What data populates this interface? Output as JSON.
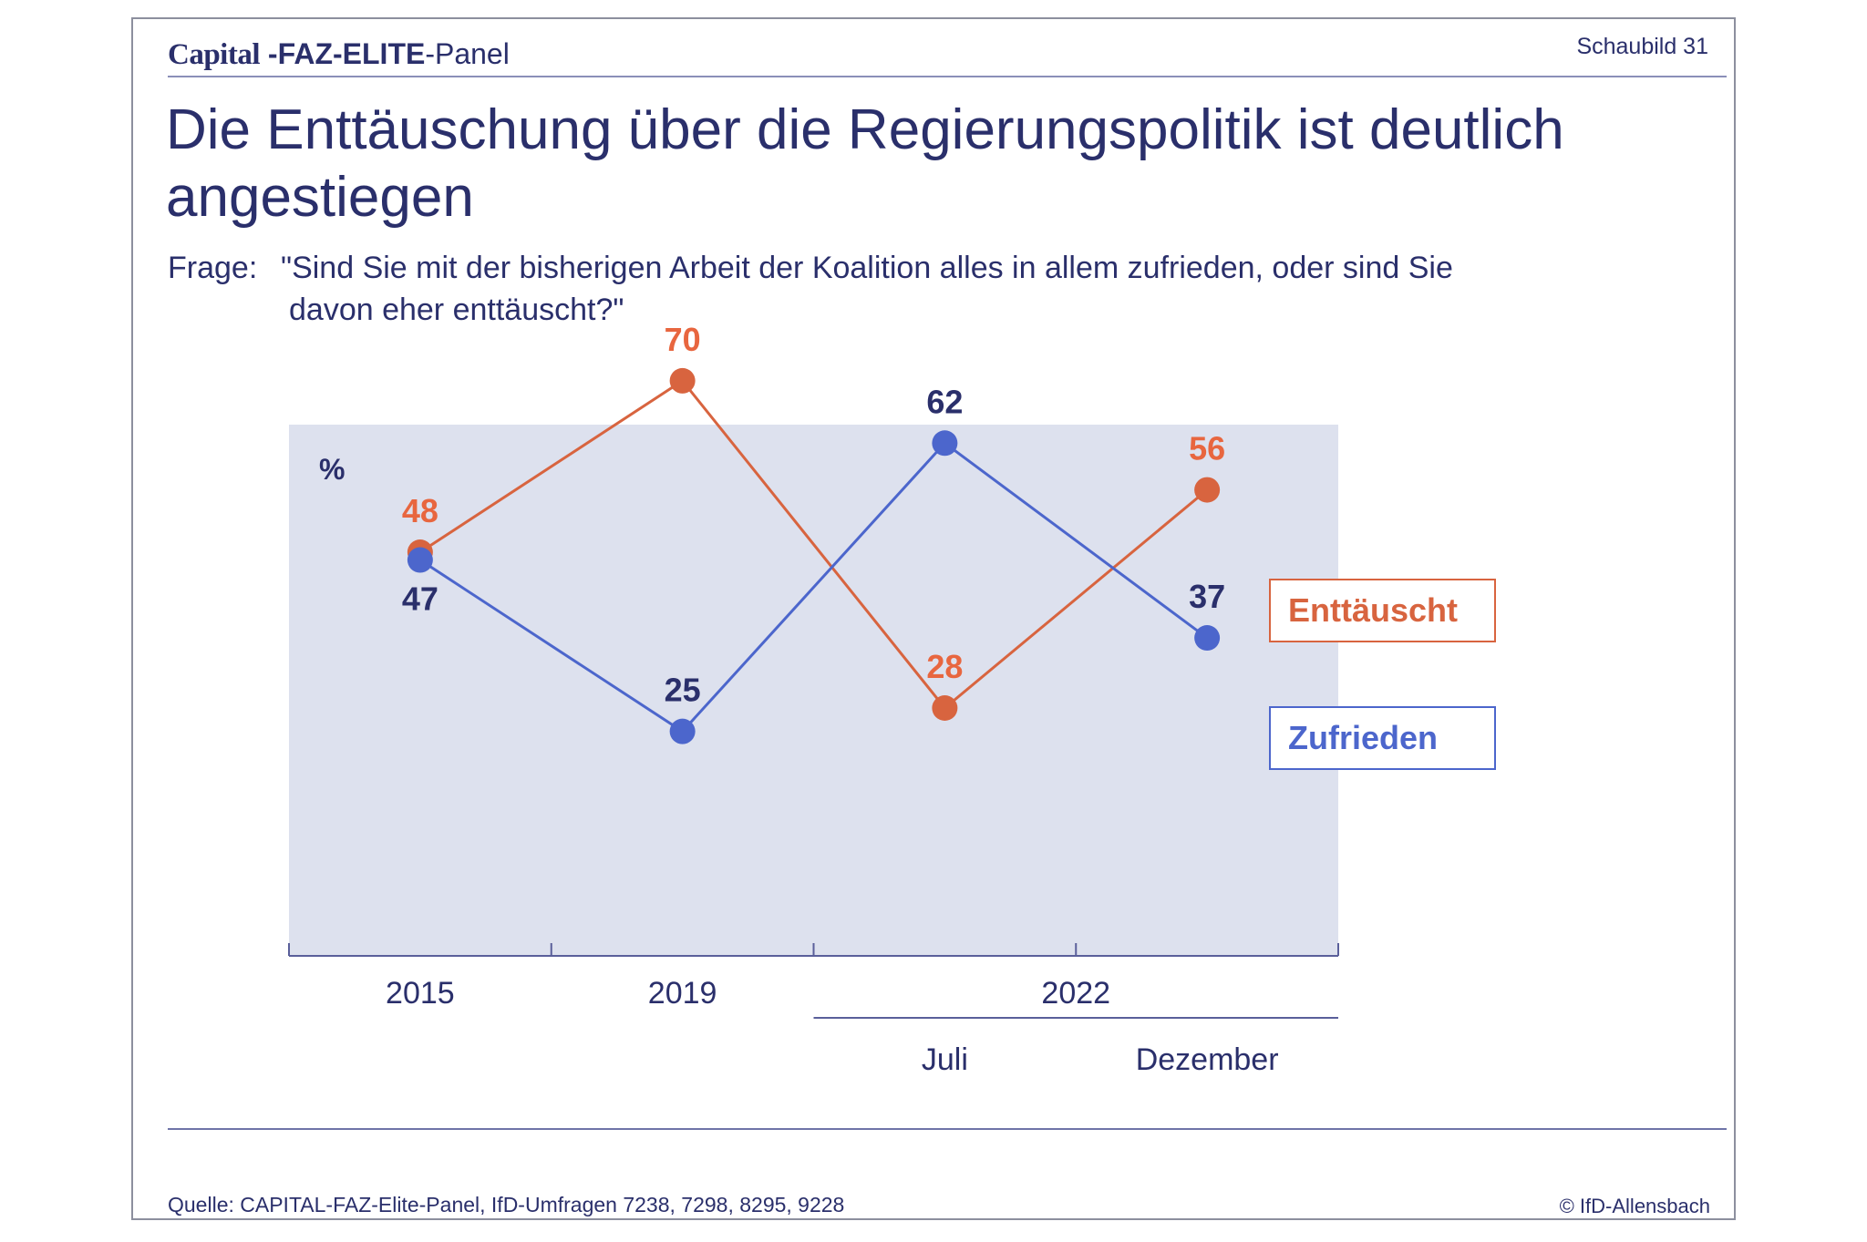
{
  "header": {
    "brand_capital": "Capital",
    "brand_faz_elite": " -FAZ-ELITE",
    "brand_panel": "-Panel",
    "figure_number": "Schaubild 31"
  },
  "title": "Die Enttäuschung über die Regierungspolitik ist deutlich angestiegen",
  "question": {
    "label": "Frage:",
    "text_line1": "\"Sind Sie mit der bisherigen Arbeit der Koalition alles in allem zufrieden, oder sind Sie",
    "text_line2": "davon eher enttäuscht?\""
  },
  "chart_data": {
    "type": "line",
    "unit_label": "%",
    "categories": [
      "2015",
      "2019",
      "2022 Juli",
      "2022 Dezember"
    ],
    "x_axis": {
      "year_labels": [
        "2015",
        "2019",
        "2022"
      ],
      "sub_labels": [
        "Juli",
        "Dezember"
      ]
    },
    "series": [
      {
        "name": "Enttäuscht",
        "values": [
          48,
          70,
          28,
          56
        ],
        "color": "#d8643f"
      },
      {
        "name": "Zufrieden",
        "values": [
          47,
          25,
          62,
          37
        ],
        "color": "#4c66cc"
      }
    ],
    "value_label_colors": {
      "Enttäuscht": "#e8663f",
      "Zufrieden": "#2a2f6b"
    },
    "plot_background": "#dde1ee",
    "legend_placement": "right",
    "ylim": [
      0,
      100
    ]
  },
  "footer": {
    "source": "Quelle: CAPITAL-FAZ-Elite-Panel, IfD-Umfragen 7238, 7298, 8295, 9228",
    "copyright": "© IfD-Allensbach"
  }
}
